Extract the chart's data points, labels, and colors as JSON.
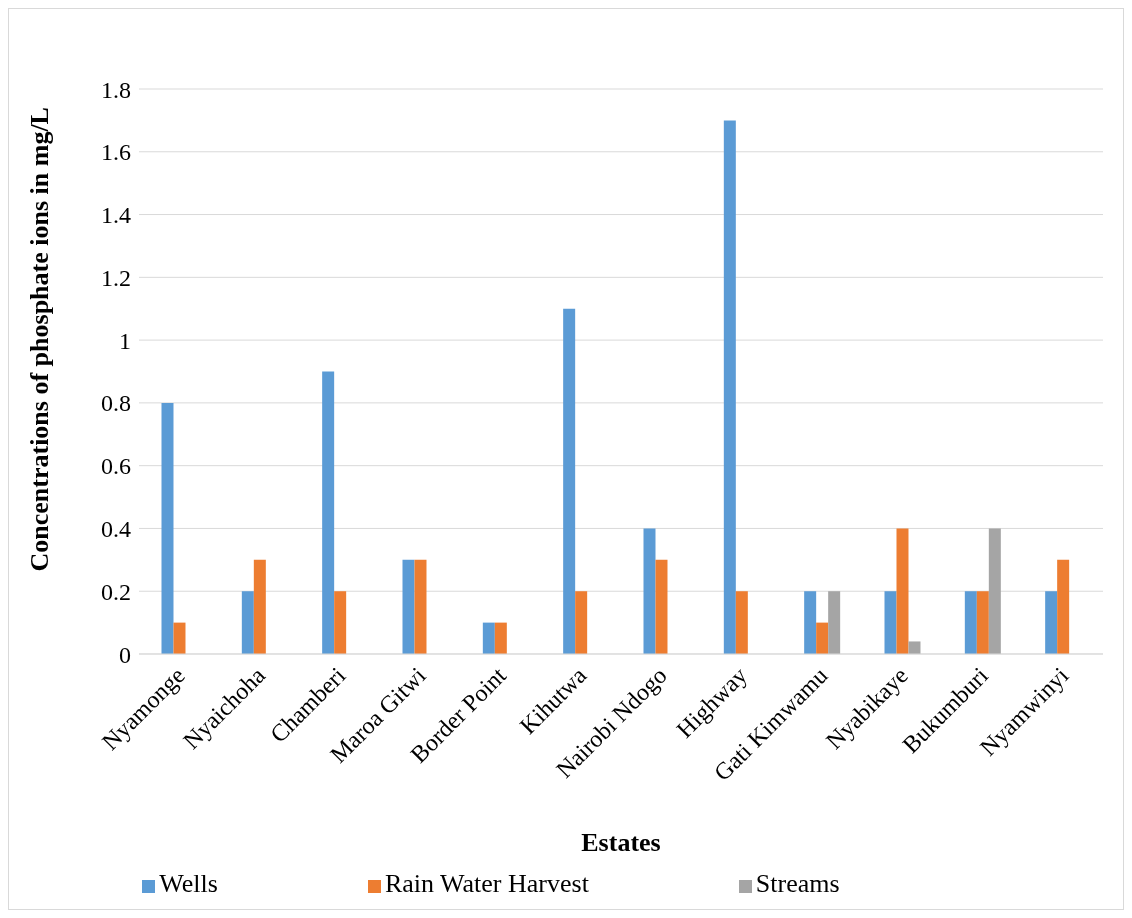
{
  "chart_data": {
    "type": "bar",
    "xlabel": "Estates",
    "ylabel": "Concentrations of phosphate ions in mg/L",
    "categories": [
      "Nyamonge",
      "Nyaichoha",
      "Chamberi",
      "Maroa Gitwi",
      "Border Point",
      "Kihutwa",
      "Nairobi Ndogo",
      "Highway",
      "Gati Kimwamu",
      "Nyabikaye",
      "Bukumburi",
      "Nyamwinyi"
    ],
    "series": [
      {
        "name": "Wells",
        "color": "#5b9bd5",
        "values": [
          0.8,
          0.2,
          0.9,
          0.3,
          0.1,
          1.1,
          0.4,
          1.7,
          0.2,
          0.2,
          0.2,
          0.2
        ]
      },
      {
        "name": "Rain Water Harvest",
        "color": "#ed7d31",
        "values": [
          0.1,
          0.3,
          0.2,
          0.3,
          0.1,
          0.2,
          0.3,
          0.2,
          0.1,
          0.4,
          0.2,
          0.3
        ]
      },
      {
        "name": "Streams",
        "color": "#a5a5a5",
        "values": [
          null,
          null,
          null,
          null,
          null,
          null,
          null,
          null,
          0.2,
          0.04,
          0.4,
          null
        ]
      }
    ],
    "ylim": [
      0,
      1.8
    ],
    "yticks": [
      0,
      0.2,
      0.4,
      0.6,
      0.8,
      1,
      1.2,
      1.4,
      1.6,
      1.8
    ],
    "grid": "y",
    "legend": "bottom"
  }
}
